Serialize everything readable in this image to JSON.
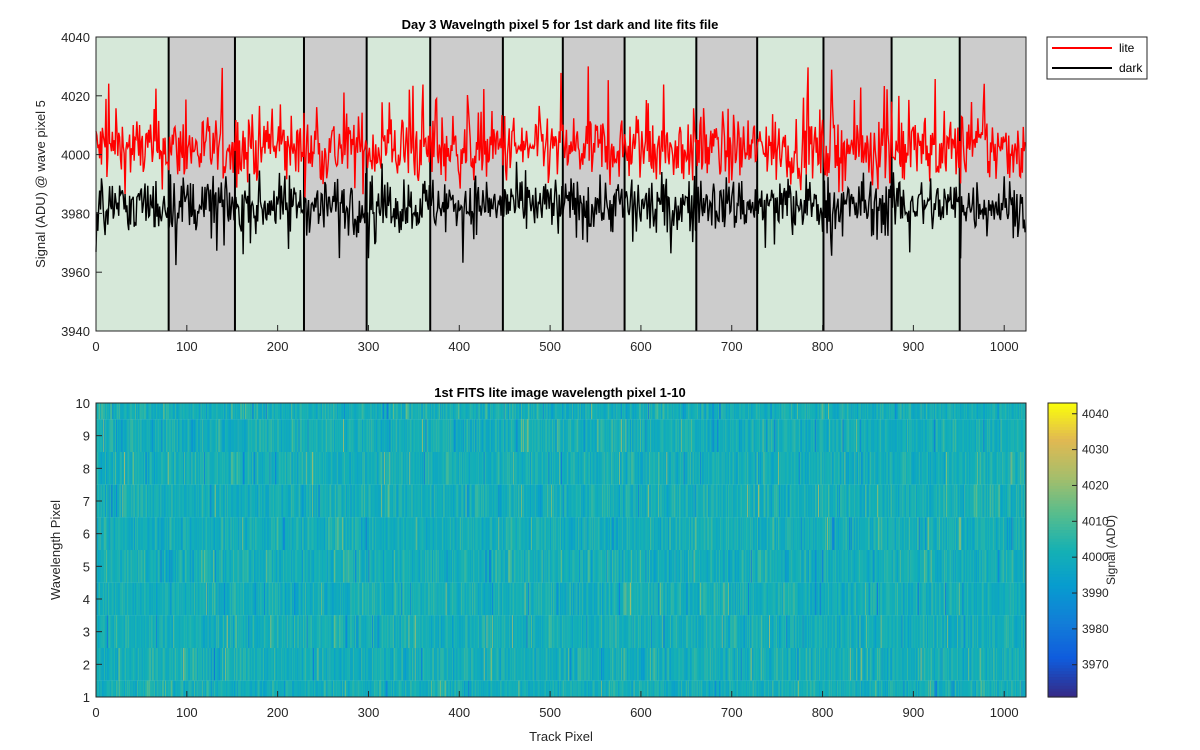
{
  "chart_data": [
    {
      "type": "line",
      "title": "Day 3 Wavelngth pixel 5 for 1st dark and lite fits file",
      "xlabel": "",
      "ylabel": "Signal (ADU) @ wave pixel 5",
      "xlim": [
        0,
        1024
      ],
      "ylim": [
        3940,
        4040
      ],
      "xticks": [
        0,
        100,
        200,
        300,
        400,
        500,
        600,
        700,
        800,
        900,
        1000
      ],
      "yticks": [
        3940,
        3960,
        3980,
        4000,
        4020,
        4040
      ],
      "legend_position": "outside-top-right",
      "grid": false,
      "band_boundaries": [
        0,
        80,
        153,
        229,
        298,
        368,
        448,
        514,
        582,
        661,
        728,
        801,
        876,
        951,
        1024
      ],
      "band_colors": [
        "#d6e8d9",
        "#cccccc"
      ],
      "series": [
        {
          "name": "lite",
          "color": "#ff0000",
          "approx_mean": 4002,
          "approx_range": [
            3978,
            4030
          ]
        },
        {
          "name": "dark",
          "color": "#000000",
          "approx_mean": 3983,
          "approx_range": [
            3958,
            4000
          ]
        }
      ],
      "n_points": 1024
    },
    {
      "type": "heatmap",
      "title": "1st FITS lite image wavelength pixel 1-10",
      "xlabel": "Track Pixel",
      "ylabel": "Wavelength Pixel",
      "xlim": [
        0,
        1024
      ],
      "ylim": [
        1,
        10
      ],
      "xticks": [
        0,
        100,
        200,
        300,
        400,
        500,
        600,
        700,
        800,
        900,
        1000
      ],
      "yticks": [
        1,
        2,
        3,
        4,
        5,
        6,
        7,
        8,
        9,
        10
      ],
      "colorbar": {
        "label": "Signal (ADU)",
        "range": [
          3961,
          4043
        ],
        "ticks": [
          3970,
          3980,
          3990,
          4000,
          4010,
          4020,
          4030,
          4040
        ],
        "colormap": "parula"
      },
      "rows": 10,
      "cols": 1024
    }
  ]
}
